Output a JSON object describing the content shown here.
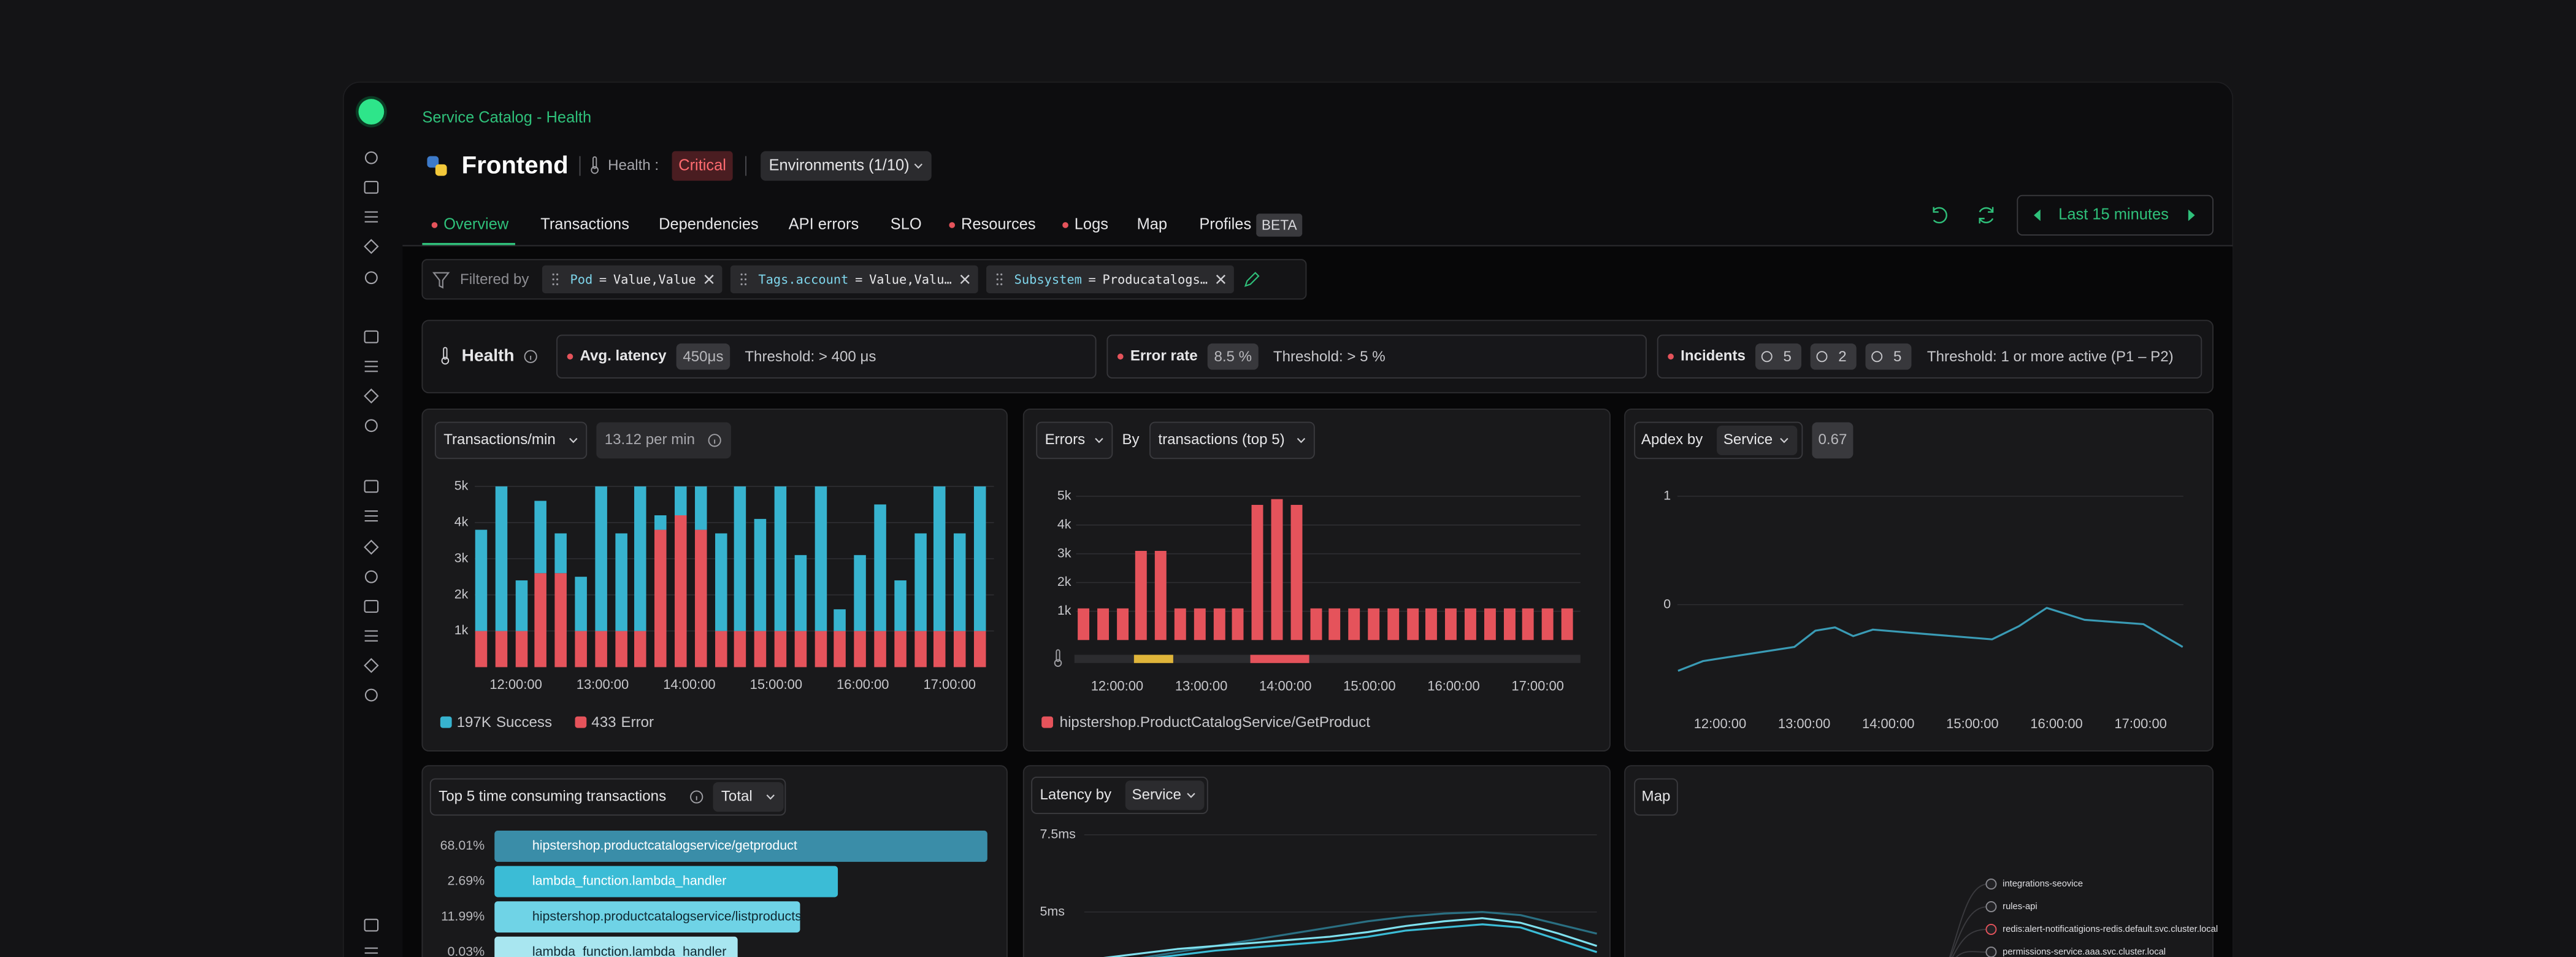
{
  "breadcrumb": "Service Catalog - Health",
  "service": {
    "name": "Frontend",
    "health_label": "Health :",
    "health_status": "Critical",
    "environments": "Environments (1/10)"
  },
  "tabs": [
    {
      "label": "Overview",
      "dot": true,
      "active": true
    },
    {
      "label": "Transactions"
    },
    {
      "label": "Dependencies"
    },
    {
      "label": "API errors"
    },
    {
      "label": "SLO"
    },
    {
      "label": "Resources",
      "dot": true
    },
    {
      "label": "Logs",
      "dot": true
    },
    {
      "label": "Map"
    },
    {
      "label": "Profiles",
      "badge": "BETA"
    }
  ],
  "time_range": "Last 15 minutes",
  "filters": {
    "label": "Filtered by",
    "chips": [
      {
        "key": "Pod",
        "op": "=",
        "value": "Value,Value"
      },
      {
        "key": "Tags.account",
        "op": "=",
        "value": "Value,Valu…"
      },
      {
        "key": "Subsystem",
        "op": "=",
        "value": "Producatalogs…"
      }
    ]
  },
  "health": {
    "title": "Health",
    "cards": [
      {
        "name": "Avg. latency",
        "value": "450μs",
        "threshold": "Threshold: > 400 μs"
      },
      {
        "name": "Error rate",
        "value": "8.5 %",
        "threshold": "Threshold: > 5 %"
      },
      {
        "name": "Incidents",
        "badges": [
          5,
          2,
          5
        ],
        "threshold": "Threshold: 1 or more active (P1 – P2)"
      }
    ]
  },
  "chart_data": [
    {
      "type": "bar",
      "stacked": true,
      "selector": "Transactions/min",
      "rate": "13.12 per min",
      "x": [
        "11:36:00",
        "11:50:00",
        "12:04:00",
        "12:17:00",
        "12:31:00",
        "12:45:00",
        "12:59:00",
        "13:13:00",
        "13:26:00",
        "13:40:00",
        "13:54:00",
        "14:08:00",
        "14:22:00",
        "14:35:00",
        "14:49:00",
        "15:03:00",
        "15:17:00",
        "15:31:00",
        "15:44:00",
        "15:58:00",
        "16:12:00",
        "16:26:00",
        "16:40:00",
        "16:53:00",
        "17:07:00",
        "17:21:00"
      ],
      "xlim": [
        "11:30:00",
        "17:30:00"
      ],
      "xticks": [
        "12:00:00",
        "13:00:00",
        "14:00:00",
        "15:00:00",
        "16:00:00",
        "17:00:00"
      ],
      "ylim": [
        0,
        5300
      ],
      "yticks": [
        {
          "value": 1000,
          "label": "1k"
        },
        {
          "value": 2000,
          "label": "2k"
        },
        {
          "value": 3000,
          "label": "3k"
        },
        {
          "value": 4000,
          "label": "4k"
        },
        {
          "value": 5000,
          "label": "5k"
        }
      ],
      "grid": true,
      "series": [
        {
          "name": "Success",
          "total": "197K",
          "color": "#37b3cf",
          "values": [
            2800,
            4000,
            1400,
            2000,
            1100,
            1500,
            4000,
            2700,
            4000,
            400,
            800,
            1200,
            2700,
            4000,
            3100,
            4000,
            2100,
            4000,
            600,
            2100,
            3500,
            1400,
            2700,
            4000,
            2700,
            4000
          ]
        },
        {
          "name": "Error",
          "total": "433",
          "color": "#e5535b",
          "values": [
            1000,
            1000,
            1000,
            2600,
            2600,
            1000,
            1000,
            1000,
            1000,
            3800,
            4200,
            3800,
            1000,
            1000,
            1000,
            1000,
            1000,
            1000,
            1000,
            1000,
            1000,
            1000,
            1000,
            1000,
            1000,
            1000
          ]
        }
      ]
    },
    {
      "type": "bar",
      "selectors": [
        "Errors",
        "transactions (top 5)"
      ],
      "by_label": "By",
      "x": [
        "11:36:00",
        "11:50:00",
        "12:04:00",
        "12:17:00",
        "12:31:00",
        "12:45:00",
        "12:59:00",
        "13:13:00",
        "13:26:00",
        "13:40:00",
        "13:54:00",
        "14:08:00",
        "14:22:00",
        "14:35:00",
        "14:49:00",
        "15:03:00",
        "15:17:00",
        "15:31:00",
        "15:44:00",
        "15:58:00",
        "16:12:00",
        "16:26:00",
        "16:40:00",
        "16:53:00",
        "17:07:00",
        "17:21:00"
      ],
      "xlim": [
        "11:30:00",
        "17:30:00"
      ],
      "xticks": [
        "12:00:00",
        "13:00:00",
        "14:00:00",
        "15:00:00",
        "16:00:00",
        "17:00:00"
      ],
      "ylim": [
        0,
        5300
      ],
      "yticks": [
        {
          "value": 1000,
          "label": "1k"
        },
        {
          "value": 2000,
          "label": "2k"
        },
        {
          "value": 3000,
          "label": "3k"
        },
        {
          "value": 4000,
          "label": "4k"
        },
        {
          "value": 5000,
          "label": "5k"
        }
      ],
      "grid": true,
      "incidents": [
        {
          "start": "12:12:00",
          "end": "12:40:00",
          "color": "#e0b53a"
        },
        {
          "start": "13:35:00",
          "end": "14:17:00",
          "color": "#e5535b"
        }
      ],
      "series": [
        {
          "name": "hipstershop.ProductCatalogService/GetProduct",
          "color": "#e5535b",
          "values": [
            1100,
            1100,
            1100,
            3100,
            3100,
            1100,
            1100,
            1100,
            1100,
            4700,
            4900,
            4700,
            1100,
            1100,
            1100,
            1100,
            1100,
            1100,
            1100,
            1100,
            1100,
            1100,
            1100,
            1100,
            1100,
            1100
          ]
        }
      ]
    },
    {
      "type": "line",
      "title": "Apdex by",
      "selector": "Service",
      "score": 0.67,
      "x": [
        "11:30:00",
        "11:48:00",
        "12:53:00",
        "13:08:00",
        "13:22:00",
        "13:35:00",
        "13:49:00",
        "14:26:00",
        "15:14:00",
        "15:33:00",
        "15:53:00",
        "16:20:00",
        "17:02:00",
        "17:30:00"
      ],
      "xlim": [
        "11:30:00",
        "17:30:00"
      ],
      "xticks": [
        "12:00:00",
        "13:00:00",
        "14:00:00",
        "15:00:00",
        "16:00:00",
        "17:00:00"
      ],
      "ylim": [
        -0.79,
        1.18
      ],
      "yticks": [
        0,
        1
      ],
      "grid": true,
      "series": [
        {
          "color": "#3a9bb5",
          "values": [
            -0.61,
            -0.52,
            -0.39,
            -0.24,
            -0.21,
            -0.29,
            -0.23,
            -0.27,
            -0.32,
            -0.2,
            -0.03,
            -0.14,
            -0.18,
            -0.39
          ]
        }
      ]
    },
    {
      "type": "line",
      "title": "Latency by",
      "selector": "Service",
      "categories": [
        null,
        null,
        null,
        null,
        null,
        null,
        null,
        null,
        null,
        null,
        null,
        null,
        null,
        null
      ],
      "ylim": [
        2.5,
        7.82
      ],
      "yticks": [
        {
          "value": 7.5,
          "label": "7.5ms"
        },
        {
          "value": 5,
          "label": "5ms"
        }
      ],
      "grid": true,
      "series": [
        {
          "color": "#2a6f82",
          "values": [
            3.4,
            3.5,
            3.7,
            3.9,
            4.1,
            4.3,
            4.5,
            4.7,
            4.85,
            4.95,
            5.0,
            4.9,
            4.6,
            4.3
          ]
        },
        {
          "color": "#3bbcd6",
          "values": [
            3.3,
            3.45,
            3.6,
            3.75,
            3.85,
            3.95,
            4.05,
            4.2,
            4.4,
            4.5,
            4.6,
            4.5,
            4.1,
            3.7
          ]
        },
        {
          "color": "#7fe0ee",
          "values": [
            3.5,
            3.65,
            3.8,
            3.9,
            4.0,
            4.1,
            4.2,
            4.35,
            4.55,
            4.7,
            4.8,
            4.65,
            4.3,
            3.9
          ]
        }
      ]
    }
  ],
  "top_transactions": {
    "title": "Top 5 time consuming transactions",
    "selector": "Total",
    "rows": [
      {
        "percent": "68.01%",
        "name": "hipstershop.productcatalogservice/getproduct",
        "color": "#3a8da8"
      },
      {
        "percent": "2.69%",
        "name": "lambda_function.lambda_handler",
        "color": "#3bbcd6"
      },
      {
        "percent": "11.99%",
        "name": "hipstershop.productcatalogservice/listproducts",
        "color": "#6fd3e6"
      },
      {
        "percent": "0.03%",
        "name": "lambda_function.lambda_handler",
        "color": "#a8e6f0"
      }
    ]
  },
  "map": {
    "title": "Map",
    "nodes": [
      "integrations-seovice",
      "rules-api",
      "redis:alert-notificatigions-redis.default.svc.cluster.local",
      "permissions-service.aaa.svc.cluster.local"
    ]
  }
}
